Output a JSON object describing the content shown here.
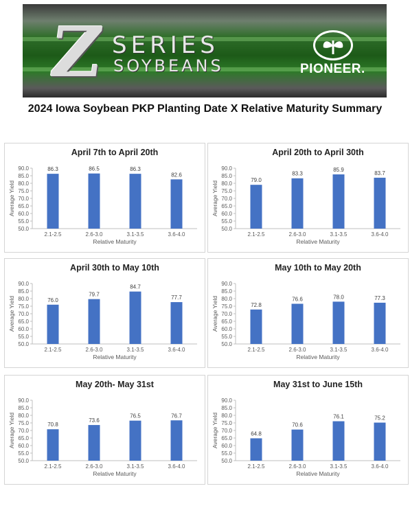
{
  "banner": {
    "logo_letter": "Z",
    "logo_line1": "SERIES",
    "logo_line2": "SOYBEANS",
    "brand": "PIONEER."
  },
  "document": {
    "title": "2024 Iowa Soybean PKP Planting Date X Relative Maturity Summary"
  },
  "colors": {
    "bar": "#4472C4",
    "axis": "#bfbfbf",
    "text": "#595959"
  },
  "chart_data": [
    {
      "type": "bar",
      "title": "April 7th to April 20th",
      "categories": [
        "2.1-2.5",
        "2.6-3.0",
        "3.1-3.5",
        "3.6-4.0"
      ],
      "values": [
        86.3,
        86.5,
        86.3,
        82.6
      ],
      "xlabel": "Relative Maturity",
      "ylabel": "Average Yield",
      "ylim": [
        50,
        90
      ],
      "yticks": [
        "90.0",
        "85.0",
        "80.0",
        "75.0",
        "70.0",
        "65.0",
        "60.0",
        "55.0",
        "50.0"
      ],
      "labels": [
        "86.3",
        "86.5",
        "86.3",
        "82.6"
      ]
    },
    {
      "type": "bar",
      "title": "April 20th to April 30th",
      "categories": [
        "2.1-2.5",
        "2.6-3.0",
        "3.1-3.5",
        "3.6-4.0"
      ],
      "values": [
        79.0,
        83.3,
        85.9,
        83.7
      ],
      "xlabel": "Relative Maturity",
      "ylabel": "Average Yield",
      "ylim": [
        50,
        90
      ],
      "yticks": [
        "90.0",
        "85.0",
        "80.0",
        "75.0",
        "70.0",
        "65.0",
        "60.0",
        "55.0",
        "50.0"
      ],
      "labels": [
        "79.0",
        "83.3",
        "85.9",
        "83.7"
      ]
    },
    {
      "type": "bar",
      "title": "April 30th to May 10th",
      "categories": [
        "2.1-2.5",
        "2.6-3.0",
        "3.1-3.5",
        "3.6-4.0"
      ],
      "values": [
        76.0,
        79.7,
        84.7,
        77.7
      ],
      "xlabel": "Relative Maturity",
      "ylabel": "Average Yield",
      "ylim": [
        50,
        90
      ],
      "yticks": [
        "90.0",
        "85.0",
        "80.0",
        "75.0",
        "70.0",
        "65.0",
        "60.0",
        "55.0",
        "50.0"
      ],
      "labels": [
        "76.0",
        "79.7",
        "84.7",
        "77.7"
      ]
    },
    {
      "type": "bar",
      "title": "May 10th to May 20th",
      "categories": [
        "2.1-2.5",
        "2.6-3.0",
        "3.1-3.5",
        "3.6-4.0"
      ],
      "values": [
        72.8,
        76.6,
        78.0,
        77.3
      ],
      "xlabel": "Relative Maturity",
      "ylabel": "Average Yield",
      "ylim": [
        50,
        90
      ],
      "yticks": [
        "90.0",
        "85.0",
        "80.0",
        "75.0",
        "70.0",
        "65.0",
        "60.0",
        "55.0",
        "50.0"
      ],
      "labels": [
        "72.8",
        "76.6",
        "78.0",
        "77.3"
      ]
    },
    {
      "type": "bar",
      "title": "May 20th- May 31st",
      "categories": [
        "2.1-2.5",
        "2.6-3.0",
        "3.1-3.5",
        "3.6-4.0"
      ],
      "values": [
        70.8,
        73.6,
        76.5,
        76.7
      ],
      "xlabel": "Relative Maturity",
      "ylabel": "Average Yield",
      "ylim": [
        50,
        90
      ],
      "yticks": [
        "90.0",
        "85.0",
        "80.0",
        "75.0",
        "70.0",
        "65.0",
        "60.0",
        "55.0",
        "50.0"
      ],
      "labels": [
        "70.8",
        "73.6",
        "76.5",
        "76.7"
      ]
    },
    {
      "type": "bar",
      "title": "May 31st to June 15th",
      "categories": [
        "2.1-2.5",
        "2.6-3.0",
        "3.1-3.5",
        "3.6-4.0"
      ],
      "values": [
        64.8,
        70.6,
        76.1,
        75.2
      ],
      "xlabel": "Relative Maturity",
      "ylabel": "Average Yield",
      "ylim": [
        50,
        90
      ],
      "yticks": [
        "90.0",
        "85.0",
        "80.0",
        "75.0",
        "70.0",
        "65.0",
        "60.0",
        "55.0",
        "50.0"
      ],
      "labels": [
        "64.8",
        "70.6",
        "76.1",
        "75.2"
      ]
    }
  ]
}
